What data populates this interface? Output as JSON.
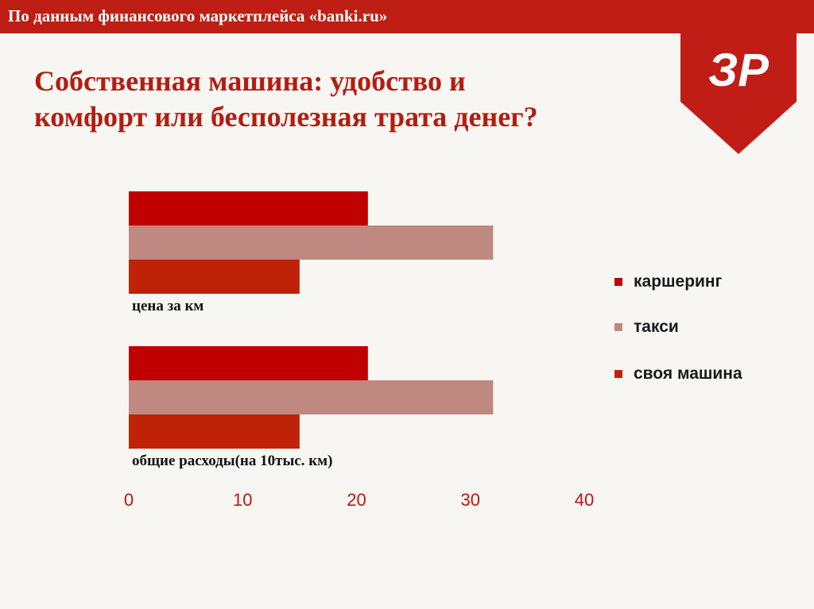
{
  "header": {
    "banner_text": "По данным финансового маркетплейса «banki.ru»",
    "title_line1": "Собственная машина: удобство и",
    "title_line2": "комфорт или бесполезная трата денег?",
    "logo_text": "ЗР"
  },
  "colors": {
    "banner": "#be1e14",
    "title": "#b21d12",
    "logo": "#c01d16"
  },
  "chart_data": {
    "type": "bar",
    "orientation": "horizontal",
    "categories": [
      "общие расходы(на 10тыс. км)",
      "цена за км"
    ],
    "series": [
      {
        "name": "каршеринг",
        "color": "#c00000",
        "values": [
          21,
          21
        ]
      },
      {
        "name": "такси",
        "color": "#bf8880",
        "values": [
          32,
          32
        ]
      },
      {
        "name": "своя машина",
        "color": "#c02208",
        "values": [
          15,
          15
        ]
      }
    ],
    "xlim": [
      0,
      40
    ],
    "xticks": [
      0,
      10,
      20,
      30,
      40
    ],
    "xticklabels": [
      "0",
      "10",
      "20",
      "30",
      "40"
    ],
    "grid": false,
    "legend_position": "right"
  }
}
